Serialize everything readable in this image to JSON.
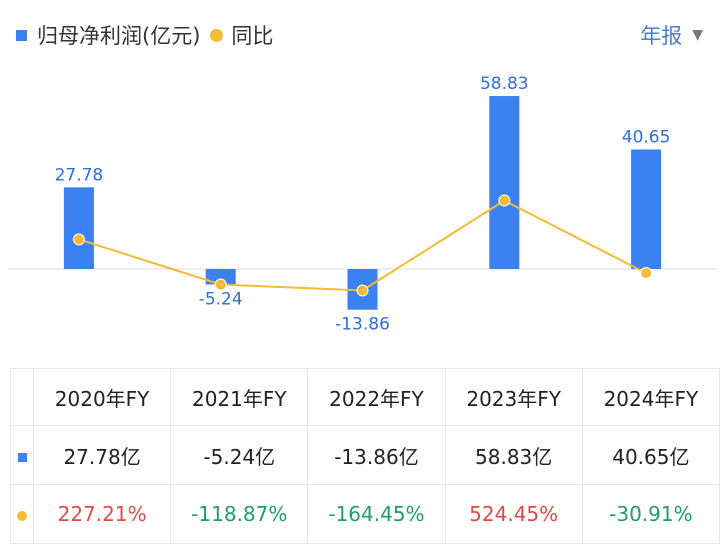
{
  "legend": {
    "bar_label": "归母净利润(亿元)",
    "line_label": "同比"
  },
  "period_selector": {
    "label": "年报",
    "caret": "▼"
  },
  "chart_data": {
    "type": "bar",
    "categories": [
      "2020年FY",
      "2021年FY",
      "2022年FY",
      "2023年FY",
      "2024年FY"
    ],
    "series": [
      {
        "name": "归母净利润(亿元)",
        "type": "bar",
        "values": [
          27.78,
          -5.24,
          -13.86,
          58.83,
          40.65
        ],
        "color": "#3b82f0"
      },
      {
        "name": "同比",
        "type": "line",
        "values": [
          227.21,
          -118.87,
          -164.45,
          524.45,
          -30.91
        ],
        "color": "#f4bb36"
      }
    ],
    "data_labels": [
      "27.78",
      "-5.24",
      "-13.86",
      "58.83",
      "40.65"
    ],
    "grid": false
  },
  "table": {
    "headers": [
      "2020年FY",
      "2021年FY",
      "2022年FY",
      "2023年FY",
      "2024年FY"
    ],
    "profit_row": [
      "27.78亿",
      "-5.24亿",
      "-13.86亿",
      "58.83亿",
      "40.65亿"
    ],
    "yoy_row": [
      "227.21%",
      "-118.87%",
      "-164.45%",
      "524.45%",
      "-30.91%"
    ]
  },
  "colors": {
    "bar": "#3b82f0",
    "line": "#f4bb36",
    "positive": "#e04a4a",
    "negative": "#1f9e6a",
    "label": "#2f6fd8"
  }
}
